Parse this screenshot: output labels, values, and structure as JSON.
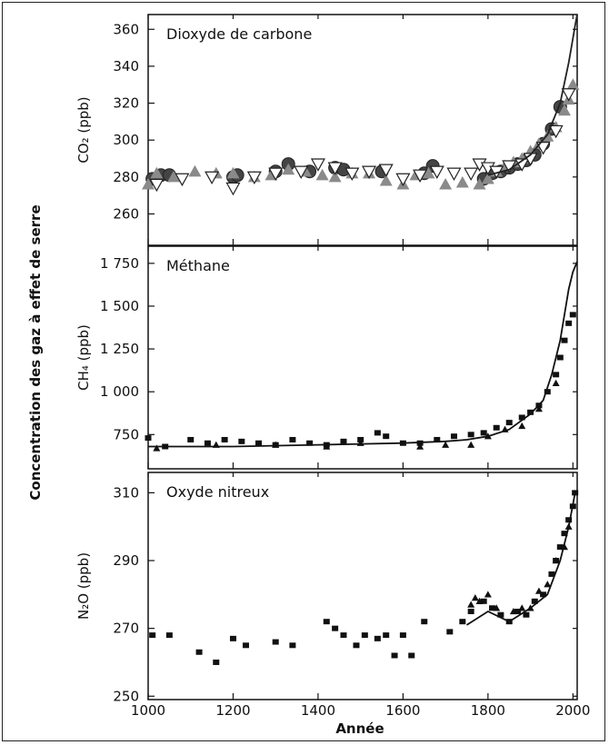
{
  "figure": {
    "common_ylabel": "Concentration des gaz à effet de serre",
    "xlabel": "Année"
  },
  "chart_data": [
    {
      "type": "scatter",
      "title": "Dioxyde de carbone",
      "ylabel": "CO₂ (ppb)",
      "xlim": [
        1000,
        2010
      ],
      "ylim": [
        243,
        368
      ],
      "yticks": [
        260,
        280,
        300,
        320,
        340,
        360
      ],
      "ytick_labels": [
        "260",
        "280",
        "300",
        "320",
        "340",
        "360"
      ],
      "xticks": [
        1000,
        1200,
        1400,
        1600,
        1800,
        2000
      ],
      "series": [
        {
          "marker": "circle",
          "color": "#444444",
          "x": [
            1010,
            1030,
            1050,
            1200,
            1210,
            1300,
            1330,
            1380,
            1440,
            1460,
            1550,
            1650,
            1670,
            1790,
            1810,
            1830,
            1850,
            1870,
            1890,
            1910,
            1930,
            1950,
            1970
          ],
          "y": [
            279,
            281,
            281,
            280,
            281,
            283,
            287,
            283,
            285,
            284,
            283,
            282,
            286,
            279,
            282,
            283,
            285,
            287,
            289,
            292,
            298,
            306,
            318
          ]
        },
        {
          "marker": "triangle-up",
          "color": "#8a8a8a",
          "x": [
            1000,
            1020,
            1060,
            1110,
            1160,
            1200,
            1250,
            1290,
            1330,
            1370,
            1410,
            1440,
            1480,
            1520,
            1560,
            1600,
            1630,
            1660,
            1700,
            1740,
            1780,
            1800,
            1820,
            1840,
            1860,
            1880,
            1900,
            1920,
            1940,
            1960,
            1980,
            1990,
            2000
          ],
          "y": [
            276,
            282,
            280,
            283,
            282,
            282,
            280,
            281,
            284,
            283,
            281,
            280,
            282,
            282,
            278,
            276,
            281,
            282,
            276,
            277,
            276,
            279,
            283,
            286,
            288,
            290,
            294,
            298,
            302,
            307,
            316,
            322,
            330
          ]
        },
        {
          "marker": "triangle-down",
          "color": "#ffffff",
          "x": [
            1020,
            1080,
            1150,
            1200,
            1250,
            1300,
            1360,
            1400,
            1440,
            1480,
            1520,
            1560,
            1600,
            1640,
            1680,
            1720,
            1760,
            1780,
            1800,
            1820,
            1850,
            1880,
            1900,
            1930,
            1960,
            1990
          ],
          "y": [
            276,
            279,
            280,
            274,
            280,
            282,
            283,
            287,
            285,
            282,
            283,
            284,
            279,
            281,
            283,
            282,
            282,
            287,
            285,
            283,
            286,
            287,
            290,
            296,
            305,
            325
          ]
        },
        {
          "marker": "line",
          "color": "#222222",
          "x": [
            1800,
            1850,
            1900,
            1940,
            1970,
            1990,
            2000,
            2005,
            2010
          ],
          "y": [
            281,
            284,
            292,
            303,
            320,
            342,
            355,
            362,
            368
          ]
        }
      ]
    },
    {
      "type": "scatter",
      "title": "Méthane",
      "ylabel": "CH₄ (ppb)",
      "xlim": [
        1000,
        2010
      ],
      "ylim": [
        550,
        1850
      ],
      "yticks": [
        750,
        1000,
        1250,
        1500,
        1750
      ],
      "ytick_labels": [
        "750",
        "1 000",
        "1 250",
        "1 500",
        "1 750"
      ],
      "xticks": [
        1000,
        1200,
        1400,
        1600,
        1800,
        2000
      ],
      "series": [
        {
          "marker": "square",
          "color": "#111111",
          "x": [
            1000,
            1040,
            1100,
            1140,
            1180,
            1220,
            1260,
            1300,
            1340,
            1380,
            1420,
            1460,
            1500,
            1540,
            1560,
            1600,
            1640,
            1680,
            1720,
            1760,
            1790,
            1820,
            1850,
            1880,
            1900,
            1920,
            1940,
            1960,
            1970,
            1980,
            1990,
            2000
          ],
          "y": [
            730,
            680,
            720,
            700,
            720,
            710,
            700,
            690,
            720,
            700,
            690,
            710,
            720,
            760,
            740,
            700,
            700,
            720,
            740,
            750,
            760,
            790,
            820,
            850,
            880,
            920,
            1000,
            1100,
            1200,
            1300,
            1400,
            1450
          ]
        },
        {
          "marker": "triangle-up",
          "color": "#111111",
          "x": [
            1020,
            1160,
            1300,
            1420,
            1500,
            1640,
            1700,
            1760,
            1800,
            1840,
            1880,
            1920,
            1960
          ],
          "y": [
            670,
            690,
            690,
            680,
            700,
            680,
            690,
            690,
            740,
            780,
            800,
            900,
            1050
          ]
        },
        {
          "marker": "line",
          "color": "#111111",
          "x": [
            1000,
            1200,
            1400,
            1600,
            1700,
            1750,
            1800,
            1850,
            1900,
            1930,
            1950,
            1970,
            1980,
            1990,
            2000,
            2010
          ],
          "y": [
            680,
            680,
            690,
            700,
            710,
            720,
            740,
            780,
            870,
            950,
            1100,
            1300,
            1450,
            1600,
            1700,
            1760
          ]
        }
      ]
    },
    {
      "type": "scatter",
      "title": "Oxyde nitreux",
      "ylabel": "N₂O (ppb)",
      "xlim": [
        1000,
        2010
      ],
      "ylim": [
        249,
        316
      ],
      "yticks": [
        250,
        270,
        290,
        310
      ],
      "ytick_labels": [
        "250",
        "270",
        "290",
        "310"
      ],
      "xticks": [
        1000,
        1200,
        1400,
        1600,
        1800,
        2000
      ],
      "series": [
        {
          "marker": "square",
          "color": "#111111",
          "x": [
            1010,
            1050,
            1120,
            1160,
            1200,
            1230,
            1300,
            1340,
            1420,
            1440,
            1460,
            1490,
            1510,
            1540,
            1560,
            1580,
            1600,
            1620,
            1650,
            1710,
            1740,
            1760,
            1790,
            1810,
            1830,
            1850,
            1870,
            1890,
            1910,
            1930,
            1950,
            1960,
            1970,
            1980,
            1990,
            2000,
            2005
          ],
          "y": [
            268,
            268,
            263,
            260,
            267,
            265,
            266,
            265,
            272,
            270,
            268,
            265,
            268,
            267,
            268,
            262,
            268,
            262,
            272,
            269,
            272,
            275,
            278,
            276,
            274,
            272,
            275,
            274,
            278,
            280,
            286,
            290,
            294,
            298,
            302,
            306,
            310
          ]
        },
        {
          "marker": "triangle-up",
          "color": "#111111",
          "x": [
            1760,
            1770,
            1780,
            1800,
            1820,
            1860,
            1880,
            1900,
            1920,
            1940,
            1960,
            1980,
            1990
          ],
          "y": [
            277,
            279,
            278,
            280,
            276,
            275,
            276,
            276,
            281,
            283,
            290,
            294,
            300
          ]
        },
        {
          "marker": "line",
          "color": "#111111",
          "x": [
            1750,
            1800,
            1850,
            1900,
            1940,
            1970,
            1990,
            2005
          ],
          "y": [
            271,
            275,
            272,
            276,
            280,
            290,
            300,
            310
          ]
        }
      ]
    }
  ]
}
